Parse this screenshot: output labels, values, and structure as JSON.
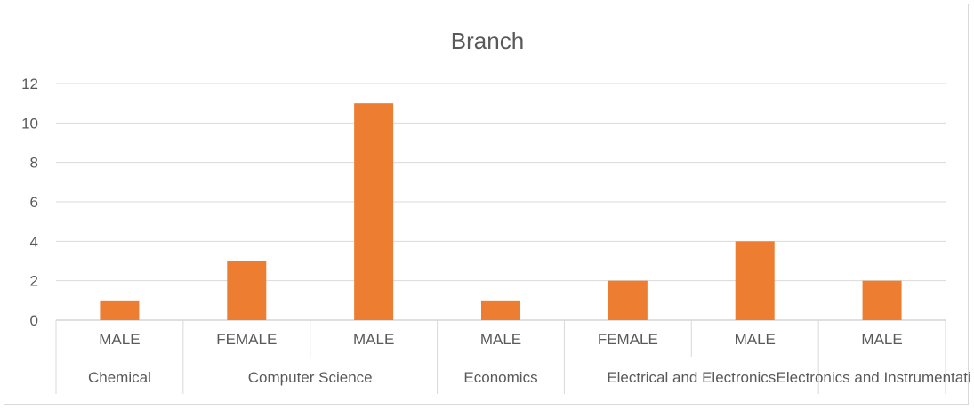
{
  "chart_data": {
    "type": "bar",
    "title": "Branch",
    "xlabel": "",
    "ylabel": "",
    "ylim": [
      0,
      12
    ],
    "yticks": [
      0,
      2,
      4,
      6,
      8,
      10,
      12
    ],
    "grid": true,
    "legend": "none",
    "bar_color": "#ed7d31",
    "groups": [
      {
        "label": "Chemical",
        "categories": [
          "MALE"
        ],
        "values": [
          1
        ]
      },
      {
        "label": "Computer Science",
        "categories": [
          "FEMALE",
          "MALE"
        ],
        "values": [
          3,
          11
        ]
      },
      {
        "label": "Economics",
        "categories": [
          "MALE"
        ],
        "values": [
          1
        ]
      },
      {
        "label": "Electrical and Electronics",
        "categories": [
          "FEMALE",
          "MALE"
        ],
        "values": [
          2,
          4
        ]
      },
      {
        "label": "Electronics and Instrumentation",
        "categories": [
          "MALE"
        ],
        "values": [
          2
        ]
      }
    ]
  }
}
